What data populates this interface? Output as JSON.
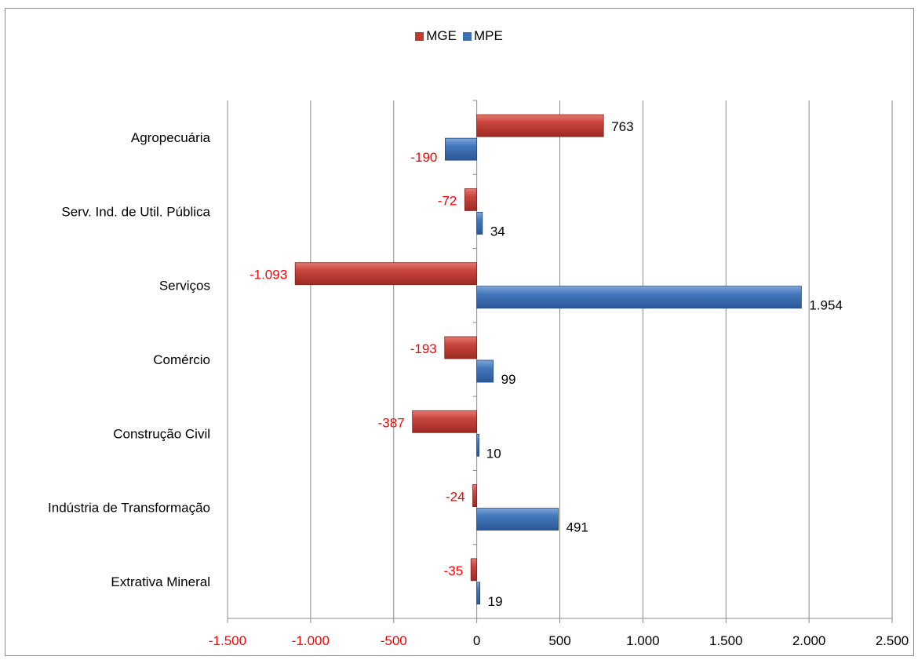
{
  "chart_data": {
    "type": "bar",
    "orientation": "horizontal",
    "categories": [
      "Agropecuária",
      "Serv. Ind. de Util. Pública",
      "Serviços",
      "Comércio",
      "Construção Civil",
      "Indústria de Transformação",
      "Extrativa Mineral"
    ],
    "series": [
      {
        "name": "MGE",
        "color": "#c0392b",
        "values": [
          763,
          -72,
          -1093,
          -193,
          -387,
          -24,
          -35
        ],
        "labels": [
          "763",
          "-72",
          "-1.093",
          "-193",
          "-387",
          "-24",
          "-35"
        ]
      },
      {
        "name": "MPE",
        "color": "#3a6fb5",
        "values": [
          -190,
          34,
          1954,
          99,
          10,
          491,
          19
        ],
        "labels": [
          "-190",
          "34",
          "1.954",
          "99",
          "10",
          "491",
          "19"
        ]
      }
    ],
    "xlim": [
      -1500,
      2500
    ],
    "xticks": [
      -1500,
      -1000,
      -500,
      0,
      500,
      1000,
      1500,
      2000,
      2500
    ],
    "xtick_labels": [
      "-1.500",
      "-1.000",
      "-500",
      "0",
      "500",
      "1.000",
      "1.500",
      "2.000",
      "2.500"
    ],
    "negative_label_color": "#ff0000",
    "grid": "vertical",
    "legend_position": "top"
  }
}
